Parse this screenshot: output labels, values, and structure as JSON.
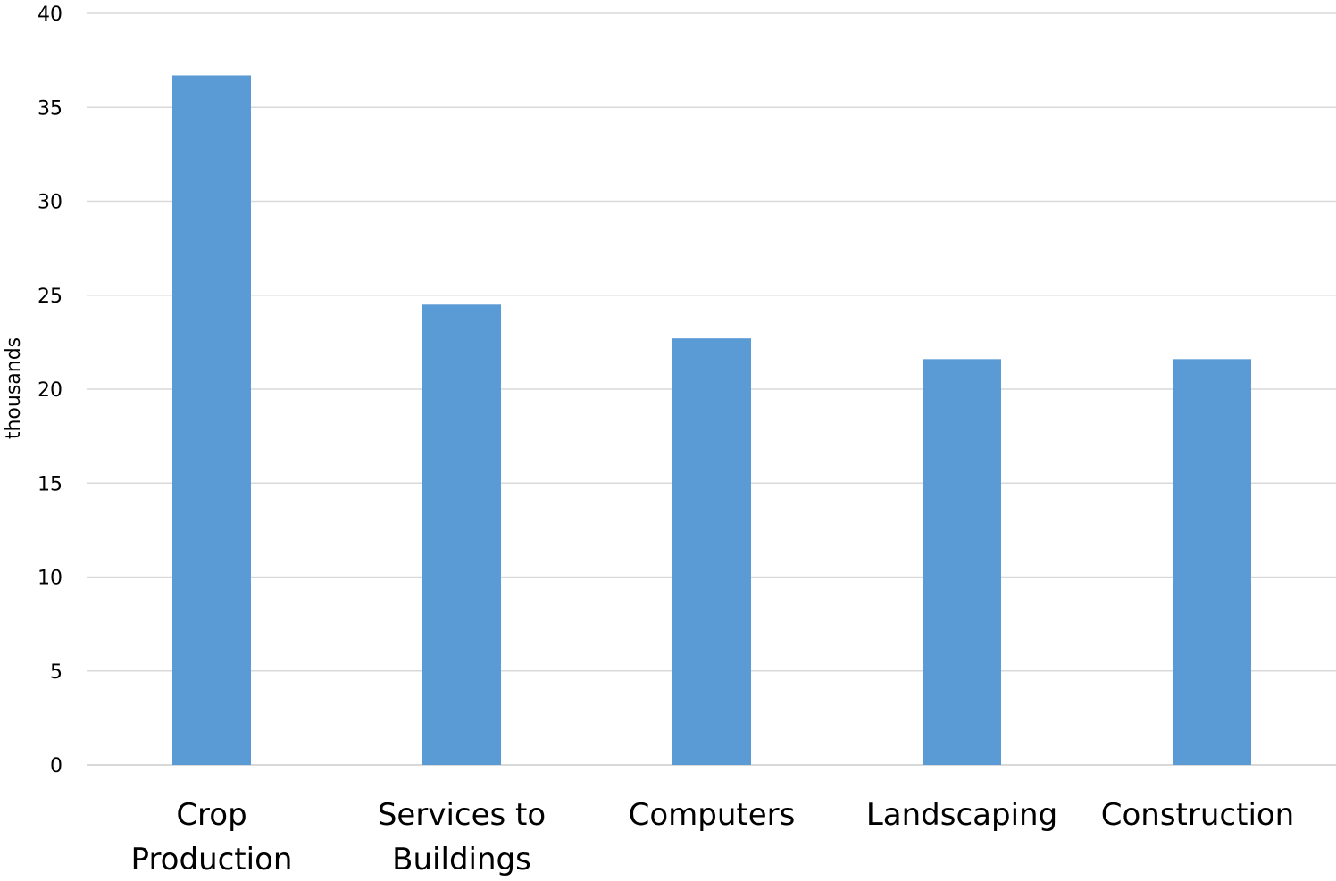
{
  "chart_data": {
    "type": "bar",
    "title": "",
    "xlabel": "",
    "ylabel": "thousands",
    "categories": [
      [
        "Crop",
        "Production"
      ],
      [
        "Services to",
        "Buildings"
      ],
      [
        "Computers"
      ],
      [
        "Landscaping"
      ],
      [
        "Construction"
      ]
    ],
    "values": [
      36.7,
      24.5,
      22.7,
      21.6,
      21.6
    ],
    "ylim": [
      0,
      40
    ],
    "yticks": [
      0,
      5,
      10,
      15,
      20,
      25,
      30,
      35,
      40
    ],
    "grid": true,
    "legend": "none",
    "bar_color": "#5b9bd5",
    "grid_color": "#d9d9d9"
  }
}
